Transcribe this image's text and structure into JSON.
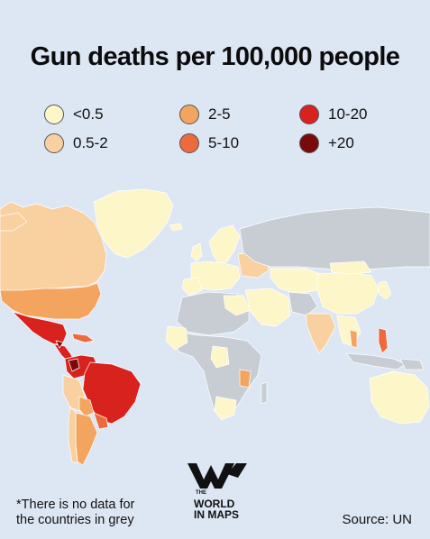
{
  "title": "Gun deaths per 100,000 people",
  "legend": [
    {
      "label": "<0.5",
      "color": "#fdf6c8"
    },
    {
      "label": "0.5-2",
      "color": "#f9d09f"
    },
    {
      "label": "2-5",
      "color": "#f3a55f"
    },
    {
      "label": "5-10",
      "color": "#ec6a3c"
    },
    {
      "label": "10-20",
      "color": "#d8221e"
    },
    {
      "label": "+20",
      "color": "#7a0a0a"
    }
  ],
  "no_data_color": "#c7cdd3",
  "footnote": {
    "line1": "*There is no data for",
    "line2": "the countries in grey"
  },
  "source": "Source: UN",
  "logo": {
    "the": "THE",
    "world": "WORLD",
    "in_maps": "IN MAPS"
  }
}
